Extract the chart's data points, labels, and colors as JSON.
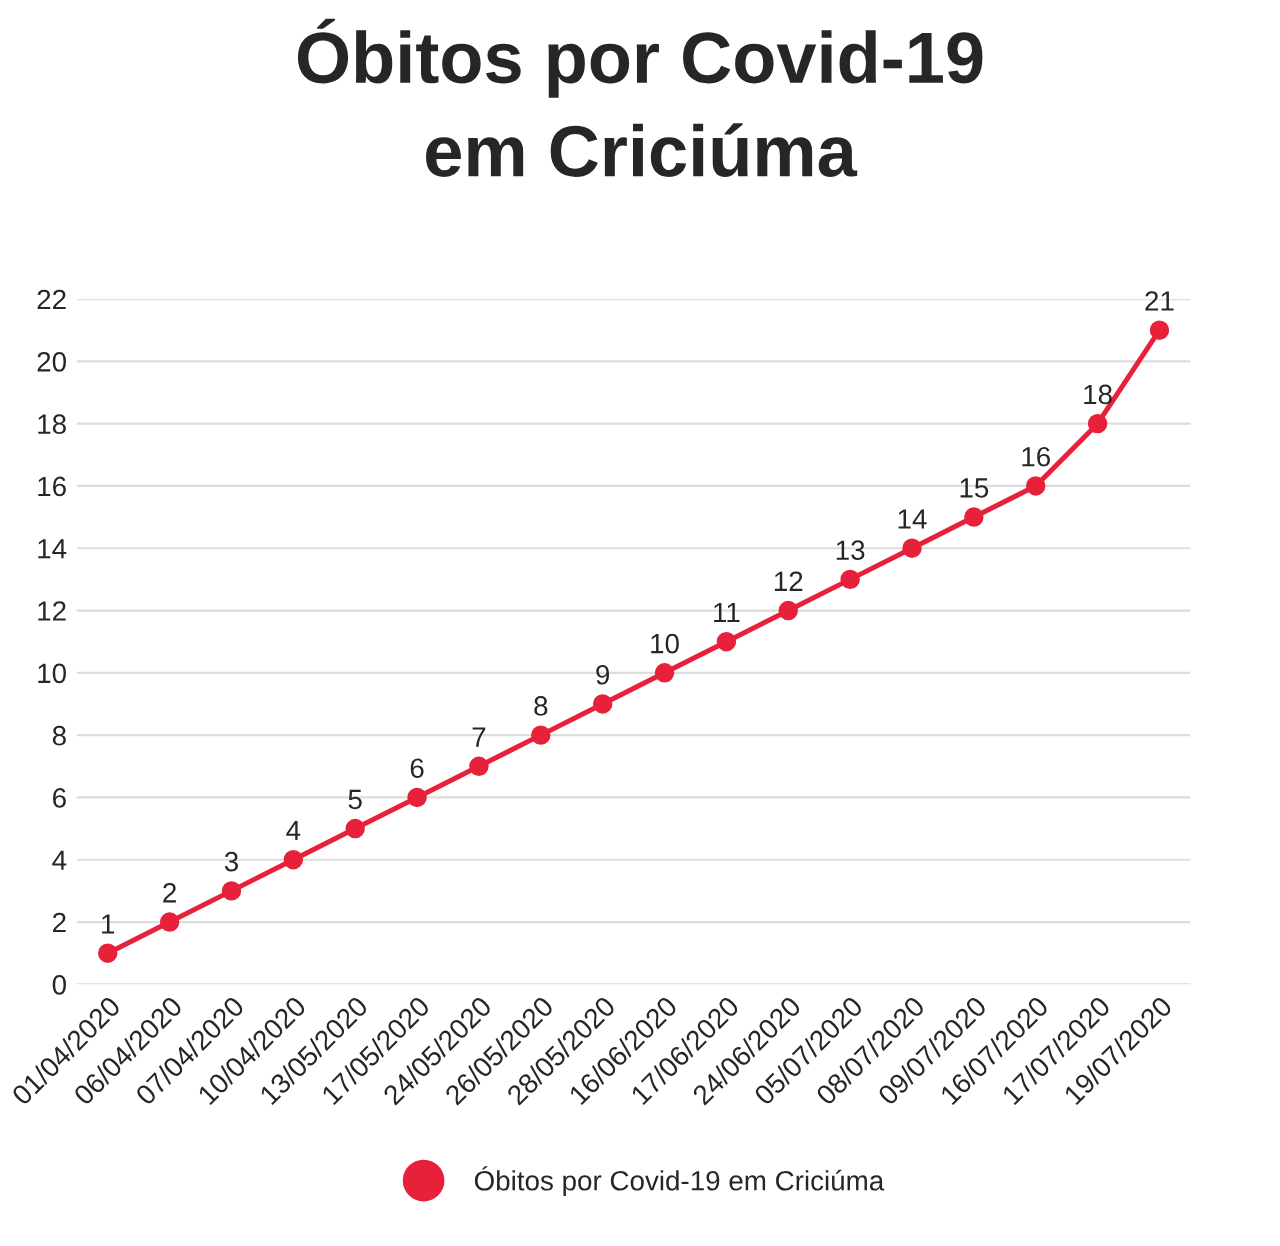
{
  "chart_data": {
    "type": "line",
    "title": "Óbitos por Covid-19\nem Criciúma",
    "categories": [
      "01/04/2020",
      "06/04/2020",
      "07/04/2020",
      "10/04/2020",
      "13/05/2020",
      "17/05/2020",
      "24/05/2020",
      "26/05/2020",
      "28/05/2020",
      "16/06/2020",
      "17/06/2020",
      "24/06/2020",
      "05/07/2020",
      "08/07/2020",
      "09/07/2020",
      "16/07/2020",
      "17/07/2020",
      "19/07/2020"
    ],
    "series": [
      {
        "name": "Óbitos por Covid-19 em Criciúma",
        "color": "#e8213a",
        "values": [
          1,
          2,
          3,
          4,
          5,
          6,
          7,
          8,
          9,
          10,
          11,
          12,
          13,
          14,
          15,
          16,
          18,
          21
        ]
      }
    ],
    "ylim": [
      0,
      22
    ],
    "yticks": [
      0,
      2,
      4,
      6,
      8,
      10,
      12,
      14,
      16,
      18,
      20,
      22
    ],
    "grid": "y",
    "legend": "bottom",
    "marker": "circle",
    "line_style": "solid",
    "data_labels": true
  }
}
